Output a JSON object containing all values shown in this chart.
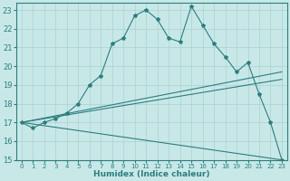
{
  "xlabel": "Humidex (Indice chaleur)",
  "background_color": "#c8e8e8",
  "grid_color": "#b0d4d4",
  "line_color": "#2d7d7d",
  "xlim": [
    -0.5,
    23.5
  ],
  "ylim": [
    15,
    23.4
  ],
  "xticks": [
    0,
    1,
    2,
    3,
    4,
    5,
    6,
    7,
    8,
    9,
    10,
    11,
    12,
    13,
    14,
    15,
    16,
    17,
    18,
    19,
    20,
    21,
    22,
    23
  ],
  "yticks": [
    15,
    16,
    17,
    18,
    19,
    20,
    21,
    22,
    23
  ],
  "main_x": [
    0,
    1,
    2,
    3,
    4,
    5,
    6,
    7,
    8,
    9,
    10,
    11,
    12,
    13,
    14,
    15,
    16,
    17,
    18,
    19,
    20,
    21,
    22,
    23
  ],
  "main_y": [
    17.0,
    16.7,
    17.0,
    17.2,
    17.5,
    18.0,
    19.0,
    19.5,
    21.2,
    21.5,
    22.7,
    23.0,
    22.5,
    21.5,
    21.3,
    23.2,
    22.2,
    21.2,
    20.5,
    19.7,
    20.2,
    18.5,
    17.0,
    15.0
  ],
  "trend1_x": [
    0,
    23
  ],
  "trend1_y": [
    17.0,
    19.7
  ],
  "trend2_x": [
    0,
    23
  ],
  "trend2_y": [
    17.0,
    19.3
  ],
  "trend3_x": [
    0,
    23
  ],
  "trend3_y": [
    17.0,
    15.0
  ]
}
